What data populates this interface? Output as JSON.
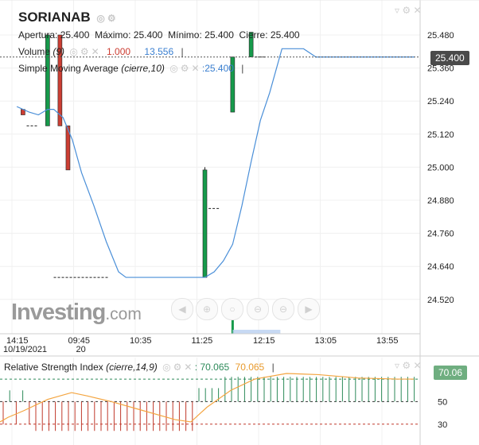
{
  "symbol": "SORIANAB",
  "ohlc": {
    "open_label": "Apertura:",
    "open": "25.400",
    "high_label": "Máximo:",
    "high": "25.400",
    "low_label": "Mínimo:",
    "low": "25.400",
    "close_label": "Cierre:",
    "close": "25.400"
  },
  "volume": {
    "label": "Volume",
    "param": "(9)",
    "value_red": "1.000",
    "value_blue": "13.556"
  },
  "sma": {
    "label": "Simple Moving Average",
    "param": "(cierre,10)",
    "value": "25.400"
  },
  "price_badge": "25.400",
  "rsi": {
    "label": "Relative Strength Index",
    "param": "(cierre,14,9)",
    "value1": "70.065",
    "value2": "70.065",
    "badge": "70.06"
  },
  "brand": {
    "text": "Investing",
    "suffix": ".com"
  },
  "colors": {
    "up": "#169a4b",
    "down": "#cc3e33",
    "sma_line": "#4a8fd8",
    "rsi_line": "#f4a540",
    "rsi_hist": "#2d8a5a",
    "rsi_hist_down": "#c0392b"
  },
  "icons": [
    "eye-icon",
    "gear-icon",
    "close-icon",
    "arrow-left-icon",
    "zoom-in-icon",
    "zoom-out-icon",
    "arrow-right-icon"
  ],
  "chart_data": {
    "type": "candlestick",
    "y_ticks": [
      "25.480",
      "25.360",
      "25.240",
      "25.120",
      "25.000",
      "24.880",
      "24.760",
      "24.640",
      "24.520"
    ],
    "ylim": [
      24.46,
      25.52
    ],
    "x_ticks": [
      {
        "label": "14:15",
        "sub": "10/19/2021",
        "t": 0
      },
      {
        "label": "09:45",
        "sub": "20",
        "t": 1
      },
      {
        "label": "10:35",
        "sub": "",
        "t": 2
      },
      {
        "label": "11:25",
        "sub": "",
        "t": 3
      },
      {
        "label": "12:15",
        "sub": "",
        "t": 4
      },
      {
        "label": "13:05",
        "sub": "",
        "t": 5
      },
      {
        "label": "13:55",
        "sub": "",
        "t": 6
      }
    ],
    "candles": [
      {
        "t": 0.05,
        "o": 25.21,
        "h": 25.21,
        "l": 25.19,
        "c": 25.19,
        "dir": "down"
      },
      {
        "t": 0.45,
        "o": 25.15,
        "h": 25.48,
        "l": 25.15,
        "c": 25.48,
        "dir": "up"
      },
      {
        "t": 0.65,
        "o": 25.48,
        "h": 25.48,
        "l": 25.15,
        "c": 25.15,
        "dir": "down"
      },
      {
        "t": 0.78,
        "o": 25.15,
        "h": 25.15,
        "l": 24.99,
        "c": 24.99,
        "dir": "down"
      },
      {
        "t": 3.0,
        "o": 24.6,
        "h": 25.0,
        "l": 24.6,
        "c": 24.99,
        "dir": "up"
      },
      {
        "t": 3.45,
        "o": 25.2,
        "h": 25.4,
        "l": 25.2,
        "c": 25.4,
        "dir": "up"
      },
      {
        "t": 3.75,
        "o": 25.4,
        "h": 25.49,
        "l": 25.4,
        "c": 25.49,
        "dir": "up"
      }
    ],
    "dashes": [
      {
        "t": 0.2,
        "price": 25.15
      },
      {
        "t": 1.0,
        "price": 24.6
      },
      {
        "t": 3.15,
        "price": 24.85
      },
      {
        "t": 3.9,
        "price": 25.4
      }
    ],
    "sma": [
      [
        -0.05,
        25.22
      ],
      [
        0.15,
        25.2
      ],
      [
        0.3,
        25.19
      ],
      [
        0.45,
        25.21
      ],
      [
        0.55,
        25.21
      ],
      [
        0.7,
        25.18
      ],
      [
        0.85,
        25.1
      ],
      [
        1.0,
        24.98
      ],
      [
        1.2,
        24.86
      ],
      [
        1.4,
        24.73
      ],
      [
        1.6,
        24.62
      ],
      [
        1.72,
        24.6
      ],
      [
        2.2,
        24.6
      ],
      [
        2.6,
        24.6
      ],
      [
        3.0,
        24.6
      ],
      [
        3.15,
        24.62
      ],
      [
        3.3,
        24.66
      ],
      [
        3.45,
        24.72
      ],
      [
        3.6,
        24.86
      ],
      [
        3.75,
        25.02
      ],
      [
        3.9,
        25.17
      ],
      [
        4.05,
        25.27
      ],
      [
        4.15,
        25.35
      ],
      [
        4.25,
        25.43
      ],
      [
        4.4,
        25.43
      ],
      [
        4.6,
        25.43
      ],
      [
        4.8,
        25.4
      ],
      [
        5.0,
        25.4
      ],
      [
        6.4,
        25.4
      ]
    ],
    "volume_bars": [
      {
        "t": 3.45,
        "v": 1.0,
        "color": "#169a4b"
      }
    ],
    "rsi_lines": {
      "upper": 70,
      "middle": 50,
      "lower": 30
    },
    "rsi_y_ticks": [
      "50",
      "30"
    ]
  }
}
